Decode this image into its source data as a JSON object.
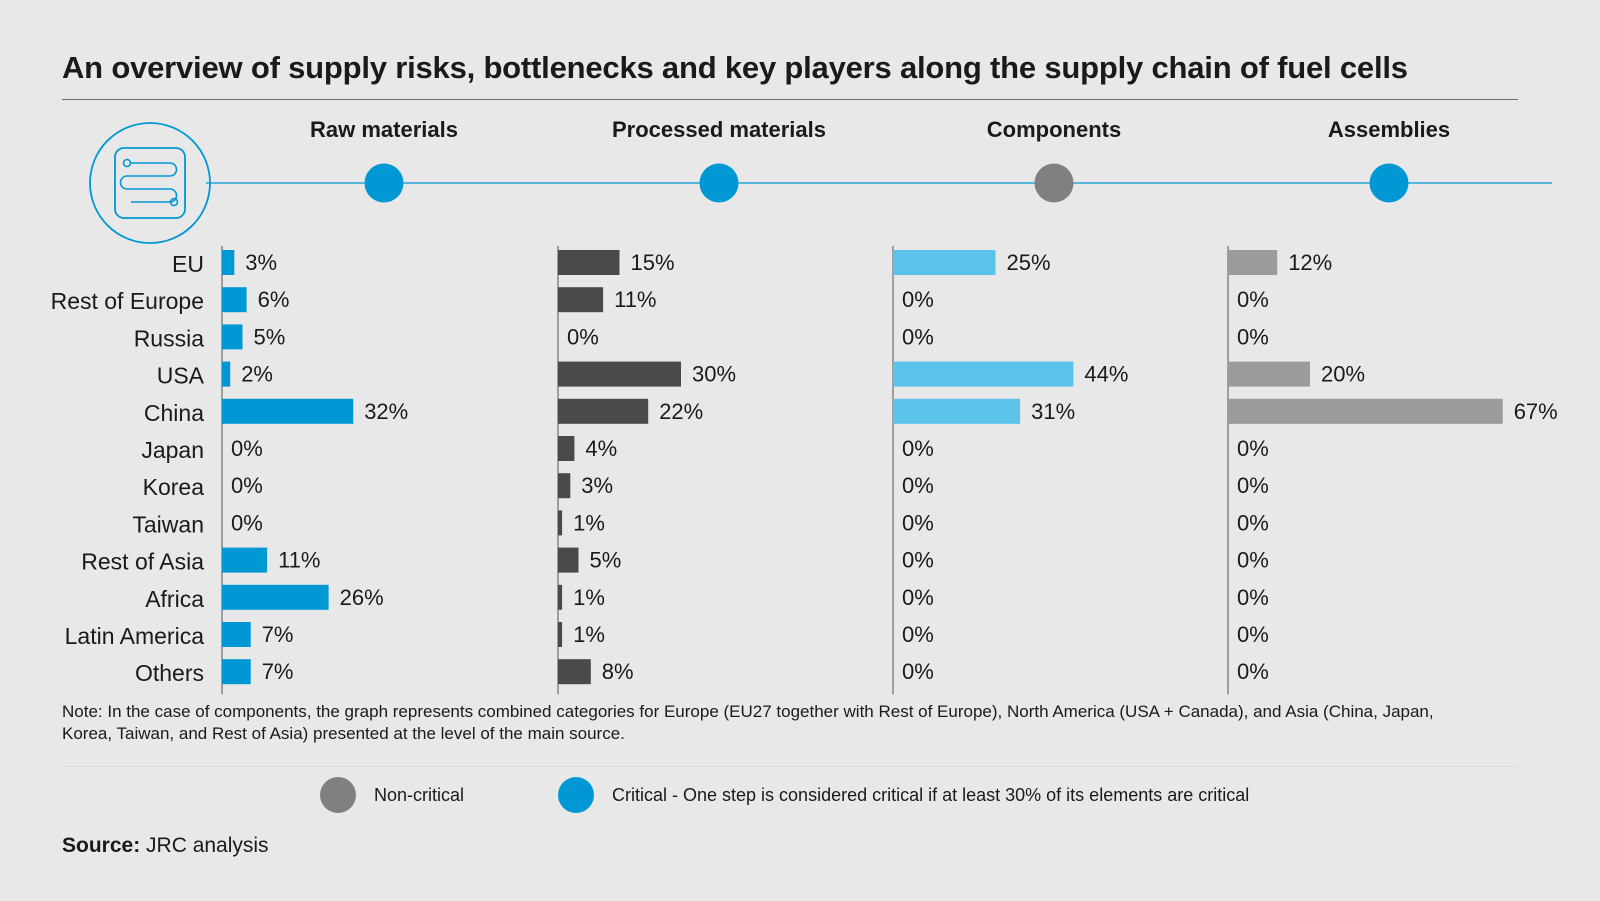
{
  "title": "An overview of supply risks, bottlenecks and key players along the supply chain of fuel cells",
  "chart_data": {
    "type": "bar",
    "orientation": "horizontal",
    "categories": [
      "EU",
      "Rest of Europe",
      "Russia",
      "USA",
      "China",
      "Japan",
      "Korea",
      "Taiwan",
      "Rest of Asia",
      "Africa",
      "Latin America",
      "Others"
    ],
    "series": [
      {
        "name": "Raw materials",
        "criticality": "Critical",
        "color": "#0098d4",
        "values": [
          3,
          6,
          5,
          2,
          32,
          0,
          0,
          0,
          11,
          26,
          7,
          7
        ],
        "labels": [
          "3%",
          "6%",
          "5%",
          "2%",
          "32%",
          "0%",
          "0%",
          "0%",
          "11%",
          "26%",
          "7%",
          "7%"
        ]
      },
      {
        "name": "Processed materials",
        "criticality": "Critical",
        "color": "#4a4a4a",
        "values": [
          15,
          11,
          0,
          30,
          22,
          4,
          3,
          1,
          5,
          1,
          1,
          8
        ],
        "labels": [
          "15%",
          "11%",
          "0%",
          "30%",
          "22%",
          "4%",
          "3%",
          "1%",
          "5%",
          "1%",
          "1%",
          "8%"
        ]
      },
      {
        "name": "Components",
        "criticality": "Non-critical",
        "color": "#5bc3ea",
        "values": [
          25,
          0,
          0,
          44,
          31,
          0,
          0,
          0,
          0,
          0,
          0,
          0
        ],
        "labels": [
          "25%",
          "0%",
          "0%",
          "44%",
          "31%",
          "0%",
          "0%",
          "0%",
          "0%",
          "0%",
          "0%",
          "0%"
        ]
      },
      {
        "name": "Assemblies",
        "criticality": "Critical",
        "color": "#9b9b9b",
        "values": [
          12,
          0,
          0,
          20,
          67,
          0,
          0,
          0,
          0,
          0,
          0,
          0
        ],
        "labels": [
          "12%",
          "0%",
          "0%",
          "20%",
          "67%",
          "0%",
          "0%",
          "0%",
          "0%",
          "0%",
          "0%",
          "0%"
        ]
      }
    ],
    "units": "%",
    "xlim": [
      0,
      67
    ]
  },
  "colors": {
    "critical": "#0098d4",
    "non_critical": "#808080",
    "connector": "#0098d4"
  },
  "icon": "supply-chain-list-icon",
  "note": "Note: In the case of components, the graph represents combined categories for Europe (EU27 together with Rest of Europe), North America (USA + Canada), and Asia (China, Japan, Korea, Taiwan, and Rest of Asia) presented at the level of the main source.",
  "legend": {
    "non_critical": "Non-critical",
    "critical": "Critical - One step is considered critical if at least 30% of its elements are critical"
  },
  "source": {
    "label": "Source:",
    "text": " JRC analysis"
  }
}
